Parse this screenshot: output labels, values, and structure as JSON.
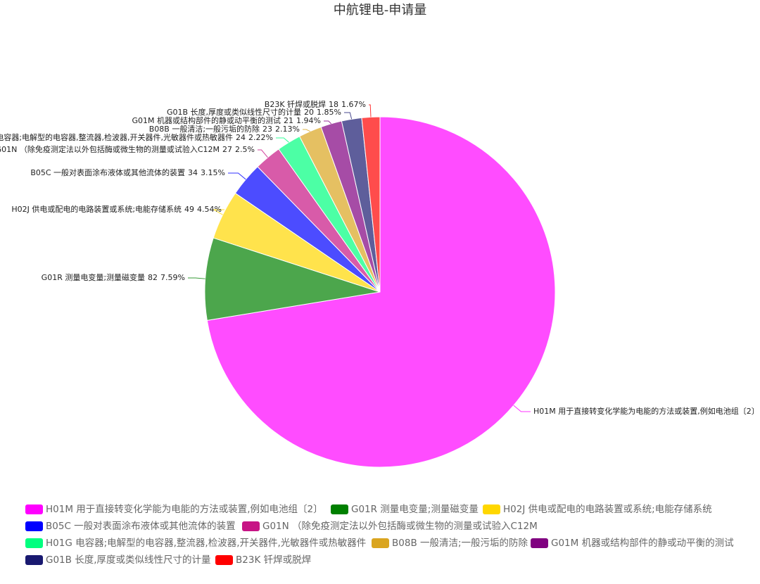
{
  "chart_data": {
    "type": "pie",
    "title": "中航锂电-申请量",
    "categories": [
      "H01M 用于直接转变化学能为电能的方法或装置,例如电池组〔2〕",
      "G01R 测量电变量;测量磁变量",
      "H02J 供电或配电的电路装置或系统;电能存储系统",
      "B05C 一般对表面涂布液体或其他流体的装置",
      "G01N （除免疫测定法以外包括酶或微生物的测量或试验入C12M",
      "H01G 电容器;电解型的电容器,整流器,检波器,开关器件,光敏器件或热敏器件",
      "B08B 一般清洁;一般污垢的防除",
      "G01M 机器或结构部件的静或动平衡的测试",
      "G01B 长度,厚度或类似线性尺寸的计量",
      "B23K 钎焊或脱焊"
    ],
    "values": [
      782,
      82,
      49,
      34,
      27,
      24,
      23,
      21,
      20,
      18
    ],
    "percent_labels": [
      "72.41%",
      "7.59%",
      "4.54%",
      "3.15%",
      "2.5%",
      "2.22%",
      "2.13%",
      "1.94%",
      "1.85%",
      "1.67%"
    ],
    "colors": [
      "#ff00ff",
      "#008000",
      "#ffd700",
      "#0000ff",
      "#c71585",
      "#00ff7f",
      "#daa520",
      "#800080",
      "#191970",
      "#ff0000"
    ]
  }
}
